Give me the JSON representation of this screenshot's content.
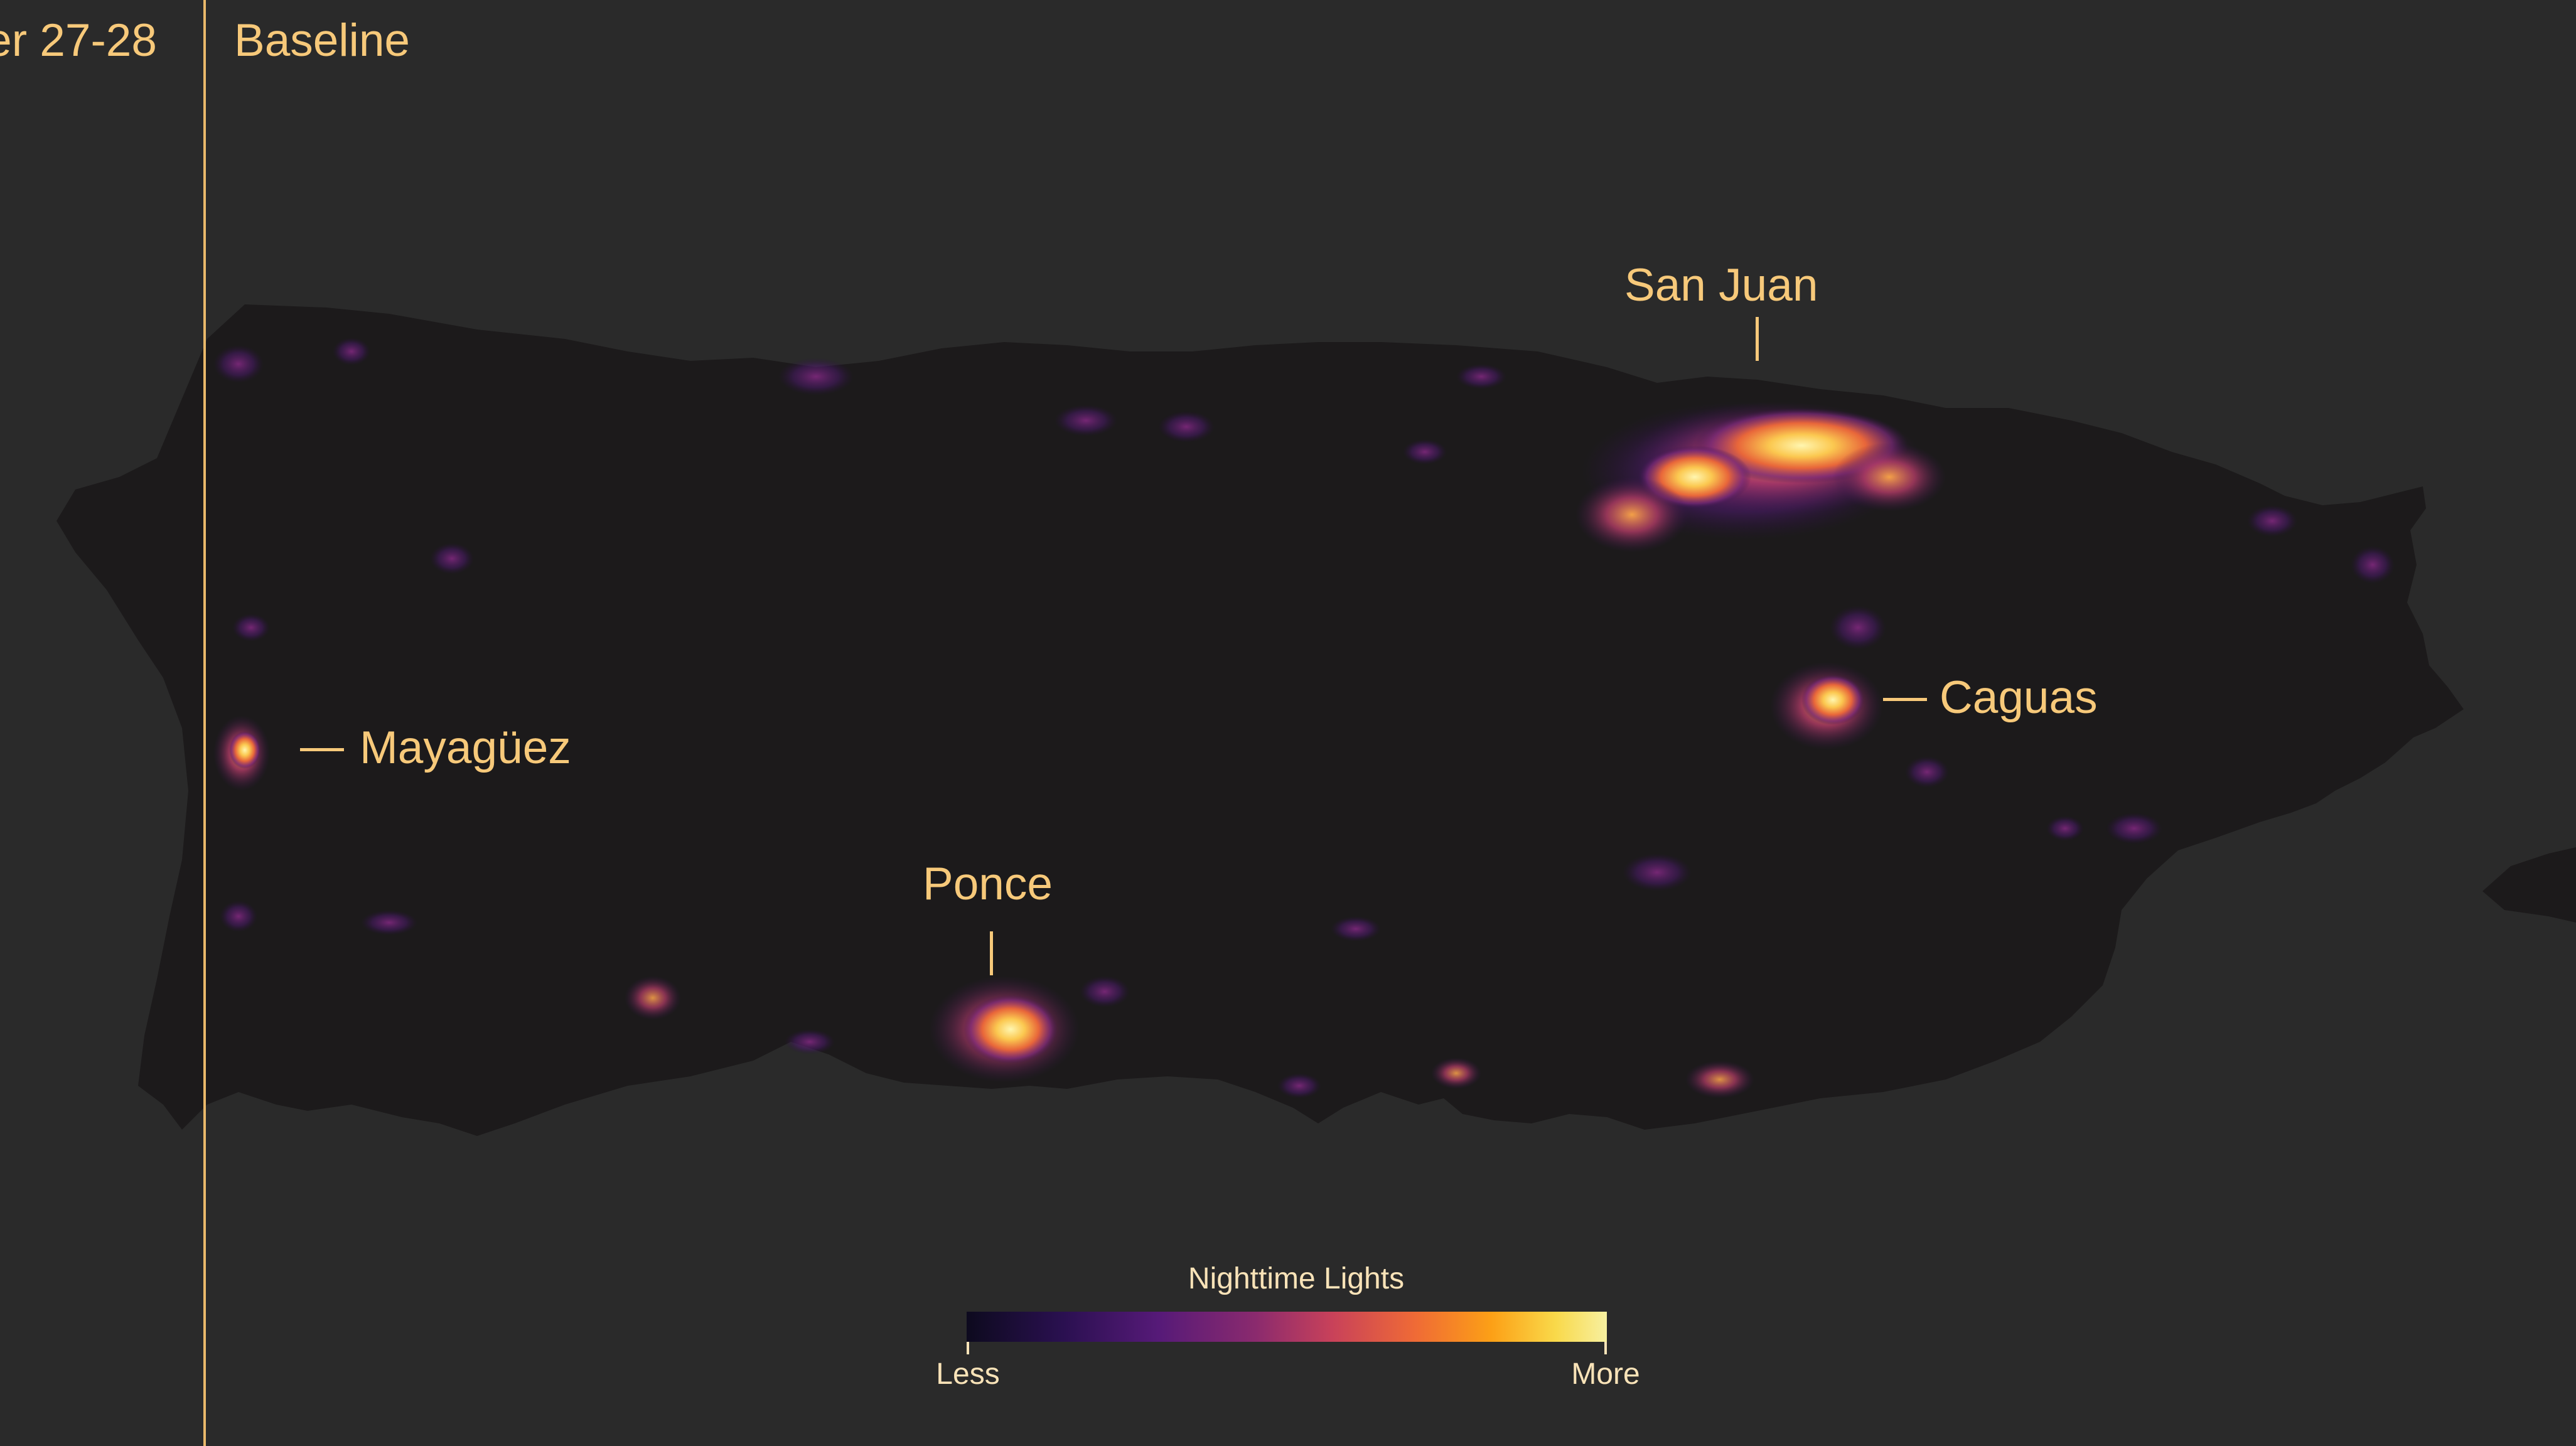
{
  "panels": {
    "left_label": "er 27-28",
    "right_label": "Baseline"
  },
  "cities": {
    "san_juan": "San Juan",
    "caguas": "Caguas",
    "mayaguez": "Mayagüez",
    "ponce": "Ponce"
  },
  "legend": {
    "title": "Nighttime Lights",
    "low": "Less",
    "high": "More"
  },
  "colors": {
    "background": "#2a2a2a",
    "land": "#1c1a1b",
    "label": "#f7c97a",
    "divider": "#e9b86a"
  }
}
